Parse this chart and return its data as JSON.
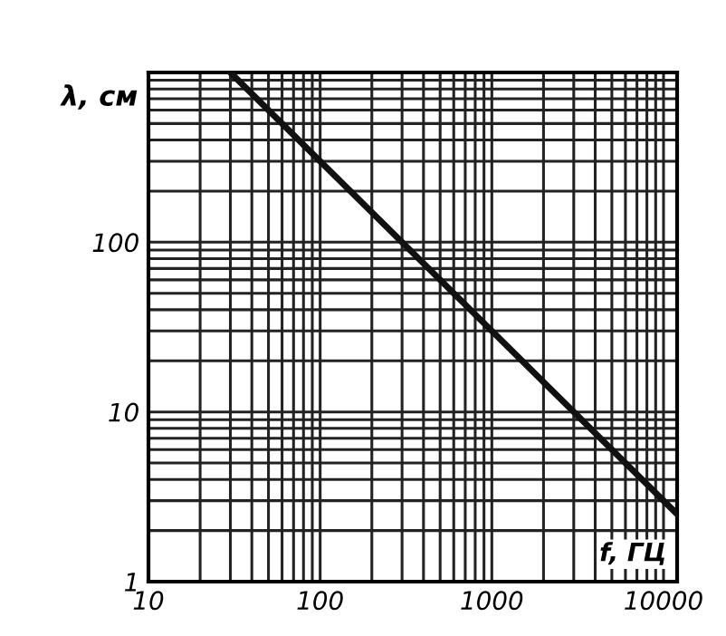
{
  "chart_data": {
    "type": "line",
    "xlabel": "f, ГЦ",
    "ylabel": "λ, см",
    "x": [
      30,
      12000
    ],
    "series": [
      {
        "color": "#111111",
        "values": [
          1000,
          2.5
        ]
      }
    ],
    "log": "xy",
    "xlim": [
      10,
      12000
    ],
    "ylim": [
      1,
      1000
    ],
    "xticks": [
      10,
      100,
      1000,
      10000
    ],
    "yticks": [
      1,
      10,
      100
    ],
    "grid": true,
    "marker": "none",
    "line_style": "solid"
  }
}
